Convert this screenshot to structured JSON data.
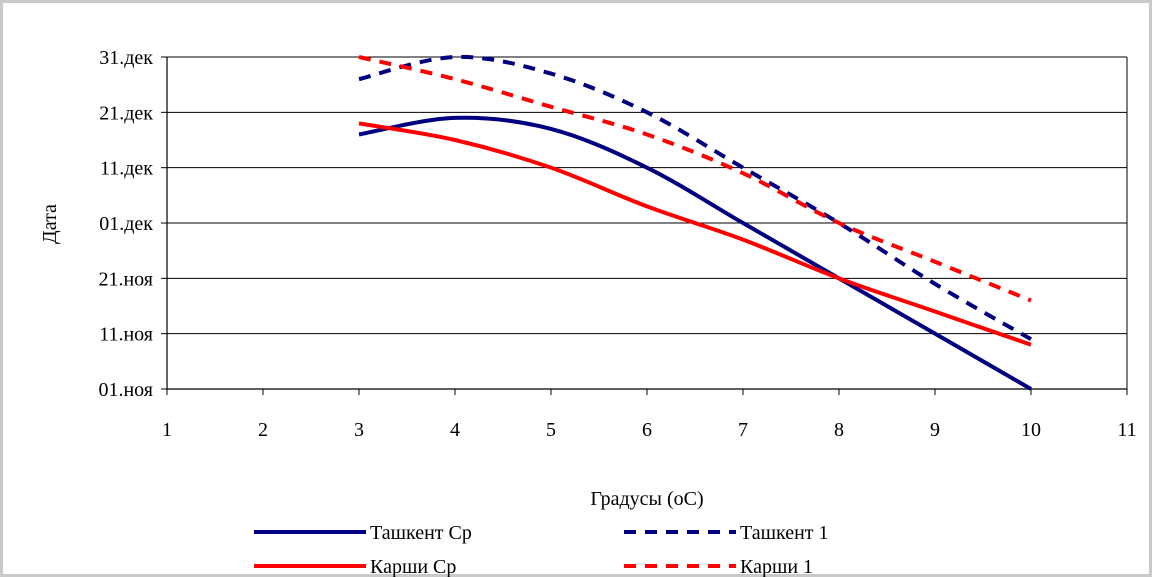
{
  "chart_data": {
    "type": "line",
    "title": "",
    "xlabel": "Градусы (оС)",
    "ylabel": "Дата",
    "xlim": [
      1,
      11
    ],
    "x_ticks": [
      "1",
      "2",
      "3",
      "4",
      "5",
      "6",
      "7",
      "8",
      "9",
      "10",
      "11"
    ],
    "ylim": [
      "2000-11-01",
      "2000-12-31"
    ],
    "y_ticks": [
      {
        "date": "2000-11-01",
        "label": "01.ноя"
      },
      {
        "date": "2000-11-11",
        "label": "11.ноя"
      },
      {
        "date": "2000-11-21",
        "label": "21.ноя"
      },
      {
        "date": "2000-12-01",
        "label": "01.дек"
      },
      {
        "date": "2000-12-11",
        "label": "11.дек"
      },
      {
        "date": "2000-12-21",
        "label": "21.дек"
      },
      {
        "date": "2000-12-31",
        "label": "31.дек"
      }
    ],
    "grid": "horizontal",
    "legend_position": "bottom",
    "x": [
      3,
      4,
      5,
      6,
      7,
      8,
      9,
      10
    ],
    "series": [
      {
        "name": "Ташкент Ср",
        "color": "#000080",
        "dash": "solid",
        "values": [
          "2000-12-17",
          "2000-12-20",
          "2000-12-18",
          "2000-12-11",
          "2000-12-01",
          "2000-11-21",
          "2000-11-11",
          "2000-11-01"
        ]
      },
      {
        "name": "Ташкент 1",
        "color": "#000080",
        "dash": "dashed",
        "values": [
          "2000-12-27",
          "2000-12-31",
          "2000-12-28",
          "2000-12-21",
          "2000-12-11",
          "2000-12-01",
          "2000-11-20",
          "2000-11-10"
        ]
      },
      {
        "name": "Карши Ср",
        "color": "#ff0000",
        "dash": "solid",
        "values": [
          "2000-12-19",
          "2000-12-16",
          "2000-12-11",
          "2000-12-04",
          "2000-11-28",
          "2000-11-21",
          "2000-11-15",
          "2000-11-09"
        ]
      },
      {
        "name": "Карши 1",
        "color": "#ff0000",
        "dash": "dashed",
        "values": [
          "2000-12-31",
          "2000-12-27",
          "2000-12-22",
          "2000-12-17",
          "2000-12-10",
          "2000-12-01",
          "2000-11-24",
          "2000-11-17"
        ]
      }
    ]
  }
}
